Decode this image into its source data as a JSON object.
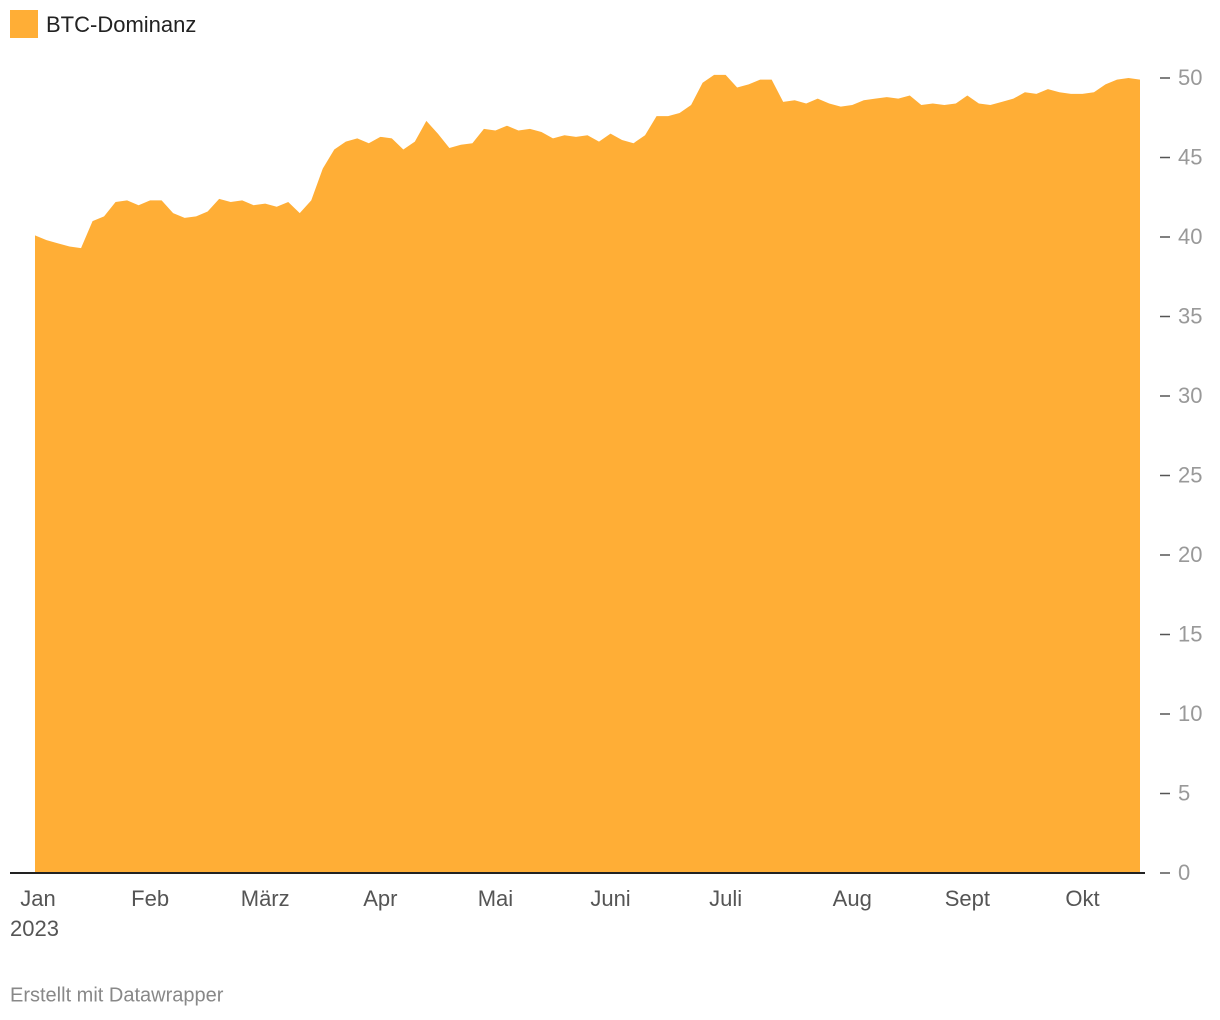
{
  "chart_data": {
    "type": "area",
    "categories": [
      "Jan",
      null,
      null,
      null,
      null,
      null,
      null,
      null,
      null,
      null,
      "Feb",
      null,
      null,
      null,
      null,
      null,
      null,
      null,
      null,
      null,
      "März",
      null,
      null,
      null,
      null,
      null,
      null,
      null,
      null,
      null,
      "Apr",
      null,
      null,
      null,
      null,
      null,
      null,
      null,
      null,
      null,
      "Mai",
      null,
      null,
      null,
      null,
      null,
      null,
      null,
      null,
      null,
      "Juni",
      null,
      null,
      null,
      null,
      null,
      null,
      null,
      null,
      null,
      "Juli",
      null,
      null,
      null,
      null,
      null,
      null,
      null,
      null,
      null,
      null,
      "Aug",
      null,
      null,
      null,
      null,
      null,
      null,
      null,
      null,
      null,
      "Sept",
      null,
      null,
      null,
      null,
      null,
      null,
      null,
      null,
      null,
      "Okt",
      null,
      null,
      null,
      null,
      null
    ],
    "x_sublabel": "2023",
    "series": [
      {
        "name": "BTC-Dominanz",
        "color": "#ffae36",
        "values": [
          40.1,
          39.8,
          39.6,
          39.4,
          39.3,
          41.0,
          41.3,
          42.2,
          42.3,
          42.0,
          42.3,
          42.3,
          41.5,
          41.2,
          41.3,
          41.6,
          42.4,
          42.2,
          42.3,
          42.0,
          42.1,
          41.9,
          42.2,
          41.5,
          42.3,
          44.3,
          45.5,
          46.0,
          46.2,
          45.9,
          46.3,
          46.2,
          45.5,
          46.0,
          47.3,
          46.5,
          45.6,
          45.8,
          45.9,
          46.8,
          46.7,
          47.0,
          46.7,
          46.8,
          46.6,
          46.2,
          46.4,
          46.3,
          46.4,
          46.0,
          46.5,
          46.1,
          45.9,
          46.4,
          47.6,
          47.6,
          47.8,
          48.3,
          49.7,
          50.2,
          50.2,
          49.4,
          49.6,
          49.9,
          49.9,
          48.5,
          48.6,
          48.4,
          48.7,
          48.4,
          48.2,
          48.3,
          48.6,
          48.7,
          48.8,
          48.7,
          48.9,
          48.3,
          48.4,
          48.3,
          48.4,
          48.9,
          48.4,
          48.3,
          48.5,
          48.7,
          49.1,
          49.0,
          49.3,
          49.1,
          49.0,
          49.0,
          49.1,
          49.6,
          49.9,
          50.0,
          49.9
        ]
      }
    ],
    "ylim": [
      0,
      50
    ],
    "yticks": [
      0,
      5,
      10,
      15,
      20,
      25,
      30,
      35,
      40,
      45,
      50
    ],
    "grid": false,
    "legend": "top-left",
    "footer": "Erstellt mit Datawrapper"
  }
}
